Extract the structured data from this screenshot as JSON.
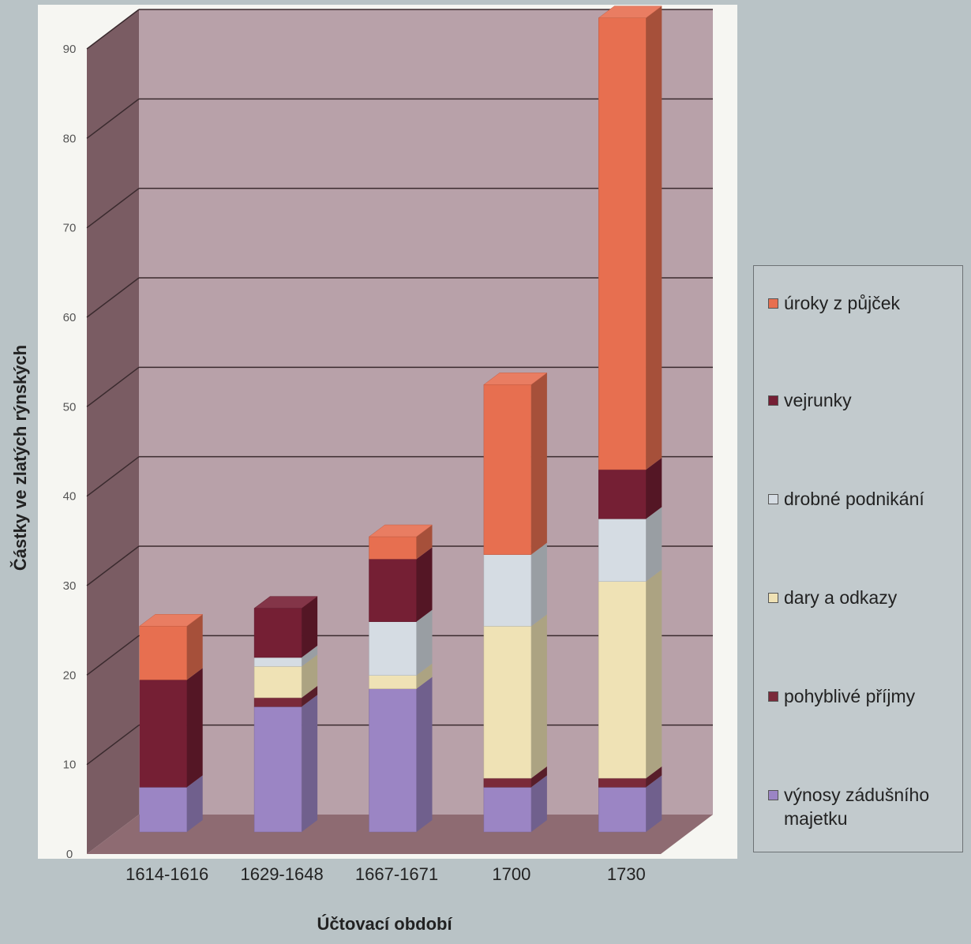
{
  "chart_data": {
    "type": "bar",
    "stacked": true,
    "three_d": true,
    "xlabel": "Účtovací období",
    "ylabel": "Částky ve zlatých rýnských",
    "ylim": [
      0,
      90
    ],
    "yticks": [
      "0",
      "10",
      "20",
      "30",
      "40",
      "50",
      "60",
      "70",
      "80",
      "90"
    ],
    "grid": true,
    "legend_position": "right",
    "categories": [
      "1614-1616",
      "1629-1648",
      "1667-1671",
      "1700",
      "1730"
    ],
    "series": [
      {
        "name": "výnosy zádušního majetku",
        "color": "#9b85c4",
        "values": [
          5,
          14,
          16,
          5,
          5
        ]
      },
      {
        "name": "pohyblivé příjmy",
        "color": "#7a2a3a",
        "values": [
          0,
          1,
          0,
          1,
          1
        ]
      },
      {
        "name": "dary a odkazy",
        "color": "#efe2b5",
        "values": [
          0,
          3.5,
          1.5,
          17,
          22
        ]
      },
      {
        "name": "drobné podnikání",
        "color": "#d5dce3",
        "values": [
          0,
          1,
          6,
          8,
          7
        ]
      },
      {
        "name": "vejrunky",
        "color": "#751f34",
        "values": [
          12,
          5.5,
          7,
          0,
          5.5
        ]
      },
      {
        "name": "úroky z půjček",
        "color": "#e76f50",
        "values": [
          6,
          0,
          2.5,
          19,
          50.5
        ]
      }
    ],
    "legend_order": [
      "úroky z půjček",
      "vejrunky",
      "drobné podnikání",
      "dary a odkazy",
      "pohyblivé příjmy",
      "výnosy zádušního majetku"
    ],
    "colors": {
      "wall": "#b8a1a9",
      "left_wall": "#7a5c63",
      "floor": "#8e6b72",
      "panel": "#f6f6f2"
    }
  }
}
